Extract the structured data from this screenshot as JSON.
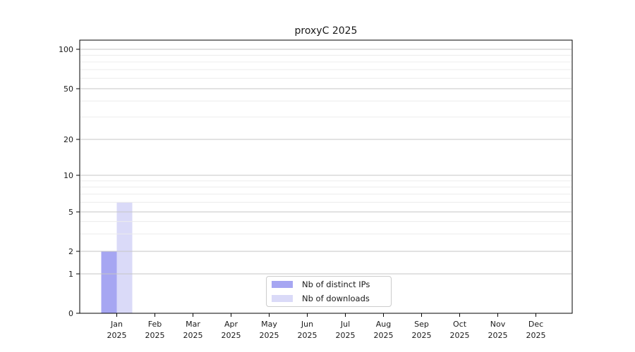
{
  "chart_data": {
    "type": "bar",
    "title": "proxyC 2025",
    "x_months": [
      "Jan",
      "Feb",
      "Mar",
      "Apr",
      "May",
      "Jun",
      "Jul",
      "Aug",
      "Sep",
      "Oct",
      "Nov",
      "Dec"
    ],
    "x_year": "2025",
    "categories": [
      "Jan 2025",
      "Feb 2025",
      "Mar 2025",
      "Apr 2025",
      "May 2025",
      "Jun 2025",
      "Jul 2025",
      "Aug 2025",
      "Sep 2025",
      "Oct 2025",
      "Nov 2025",
      "Dec 2025"
    ],
    "series": [
      {
        "name": "Nb of distinct IPs",
        "color": "#a6a6f2",
        "values": [
          2,
          0,
          0,
          0,
          0,
          0,
          0,
          0,
          0,
          0,
          0,
          0
        ]
      },
      {
        "name": "Nb of downloads",
        "color": "#dadaf8",
        "values": [
          6,
          0,
          0,
          0,
          0,
          0,
          0,
          0,
          0,
          0,
          0,
          0
        ]
      }
    ],
    "yscale": "symlog",
    "yticks": [
      0,
      1,
      2,
      5,
      10,
      20,
      50,
      100
    ],
    "ytick_labels": [
      "0",
      "1",
      "2",
      "5",
      "10",
      "20",
      "50",
      "100"
    ],
    "minor_yticks": [
      3,
      4,
      6,
      7,
      8,
      9,
      30,
      40,
      60,
      70,
      80,
      90
    ],
    "ylim": [
      0,
      118
    ],
    "xlabel": "",
    "ylabel": "",
    "grid": {
      "which": "both",
      "axis": "y",
      "major_color": "#c6c6c6",
      "minor_color": "#ececec",
      "on_top_of_bars": true
    },
    "legend_position": "bottom-center",
    "legend": [
      "Nb of distinct IPs",
      "Nb of downloads"
    ]
  }
}
